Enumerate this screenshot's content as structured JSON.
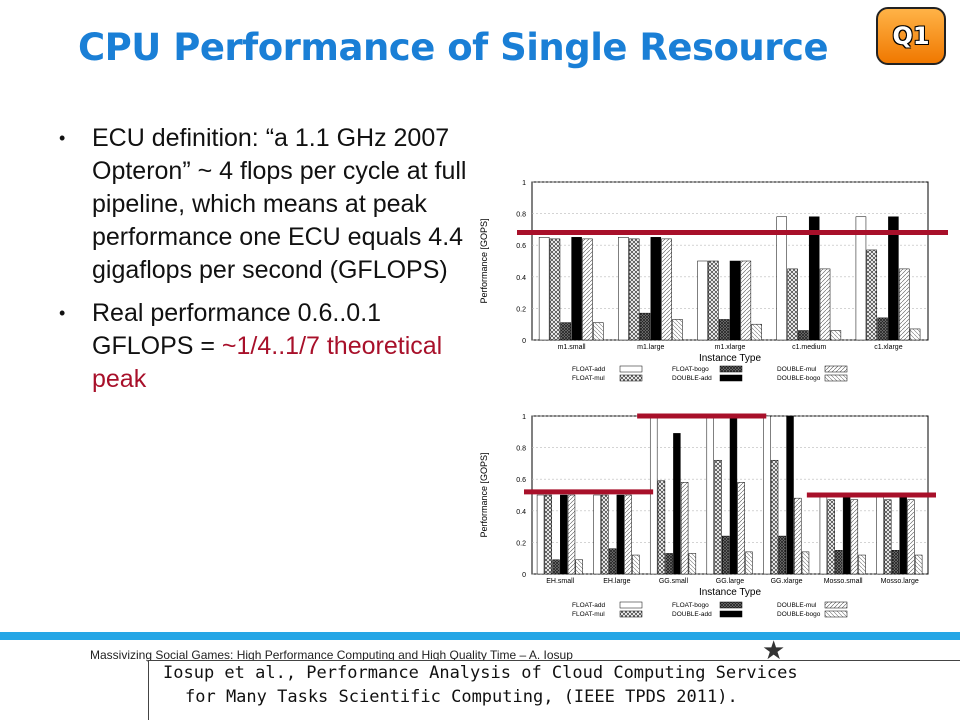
{
  "title": "CPU Performance of Single Resource",
  "badge": "Q1",
  "bullets": [
    {
      "text": "ECU definition: “a 1.1 GHz 2007 Opteron” ~ 4 flops per cycle at full pipeline, which means at peak performance one ECU equals 4.4 gigaflops per second (GFLOPS)"
    },
    {
      "text": "Real performance 0.6..0.1 GFLOPS = ",
      "highlight": "~1/4..1/7 theoretical peak"
    }
  ],
  "footer": "Massivizing Social Games: High Performance Computing and High Quality Time – A. Iosup",
  "citation": {
    "line1": "Iosup et al., Performance Analysis of Cloud Computing Services",
    "line2": "for Many Tasks Scientific Computing, (IEEE TPDS 2011)."
  },
  "colors": {
    "title": "#1a7fd6",
    "accent": "#a8102a",
    "ref_line": "#a8102a",
    "bar_black": "#000000",
    "bar_white": "#ffffff"
  },
  "chart_data": [
    {
      "type": "bar",
      "xlabel": "Instance Type",
      "ylabel": "Performance [GOPS]",
      "ylim": [
        0,
        1
      ],
      "yticks": [
        "0",
        "0.2",
        "0.4",
        "0.6",
        "0.8",
        "1"
      ],
      "categories": [
        "m1.small",
        "m1.large",
        "m1.xlarge",
        "c1.medium",
        "c1.xlarge"
      ],
      "series": [
        {
          "name": "FLOAT-add",
          "values": [
            0.65,
            0.65,
            0.5,
            0.78,
            0.78
          ]
        },
        {
          "name": "FLOAT-mul",
          "values": [
            0.64,
            0.64,
            0.5,
            0.45,
            0.57
          ]
        },
        {
          "name": "FLOAT-bogo",
          "values": [
            0.11,
            0.17,
            0.13,
            0.06,
            0.14
          ]
        },
        {
          "name": "DOUBLE-add",
          "values": [
            0.65,
            0.65,
            0.5,
            0.78,
            0.78
          ]
        },
        {
          "name": "DOUBLE-mul",
          "values": [
            0.64,
            0.64,
            0.5,
            0.45,
            0.45
          ]
        },
        {
          "name": "DOUBLE-bogo",
          "values": [
            0.11,
            0.13,
            0.1,
            0.06,
            0.07
          ]
        }
      ],
      "reference_line": {
        "value": 0.68
      }
    },
    {
      "type": "bar",
      "xlabel": "Instance Type",
      "ylabel": "Performance [GOPS]",
      "ylim": [
        0,
        1
      ],
      "yticks": [
        "0",
        "0.2",
        "0.4",
        "0.6",
        "0.8",
        "1"
      ],
      "categories": [
        "EH.small",
        "EH.large",
        "GG.small",
        "GG.large",
        "GG.xlarge",
        "Mosso.small",
        "Mosso.large"
      ],
      "series": [
        {
          "name": "FLOAT-add",
          "values": [
            0.5,
            0.5,
            1.0,
            1.0,
            1.0,
            0.5,
            0.5
          ]
        },
        {
          "name": "FLOAT-mul",
          "values": [
            0.5,
            0.5,
            0.59,
            0.72,
            0.72,
            0.47,
            0.47
          ]
        },
        {
          "name": "FLOAT-bogo",
          "values": [
            0.09,
            0.16,
            0.13,
            0.24,
            0.24,
            0.15,
            0.15
          ]
        },
        {
          "name": "DOUBLE-add",
          "values": [
            0.5,
            0.5,
            0.89,
            1.0,
            1.0,
            0.5,
            0.5
          ]
        },
        {
          "name": "DOUBLE-mul",
          "values": [
            0.5,
            0.5,
            0.58,
            0.58,
            0.48,
            0.47,
            0.47
          ]
        },
        {
          "name": "DOUBLE-bogo",
          "values": [
            0.09,
            0.12,
            0.13,
            0.14,
            0.14,
            0.12,
            0.12
          ]
        }
      ],
      "reference_segments": [
        {
          "categories": [
            "EH.small",
            "EH.large"
          ],
          "value": 0.52
        },
        {
          "categories": [
            "GG.small",
            "GG.large"
          ],
          "value": 1.0
        },
        {
          "categories": [
            "Mosso.small",
            "Mosso.large"
          ],
          "value": 0.5
        }
      ]
    }
  ]
}
